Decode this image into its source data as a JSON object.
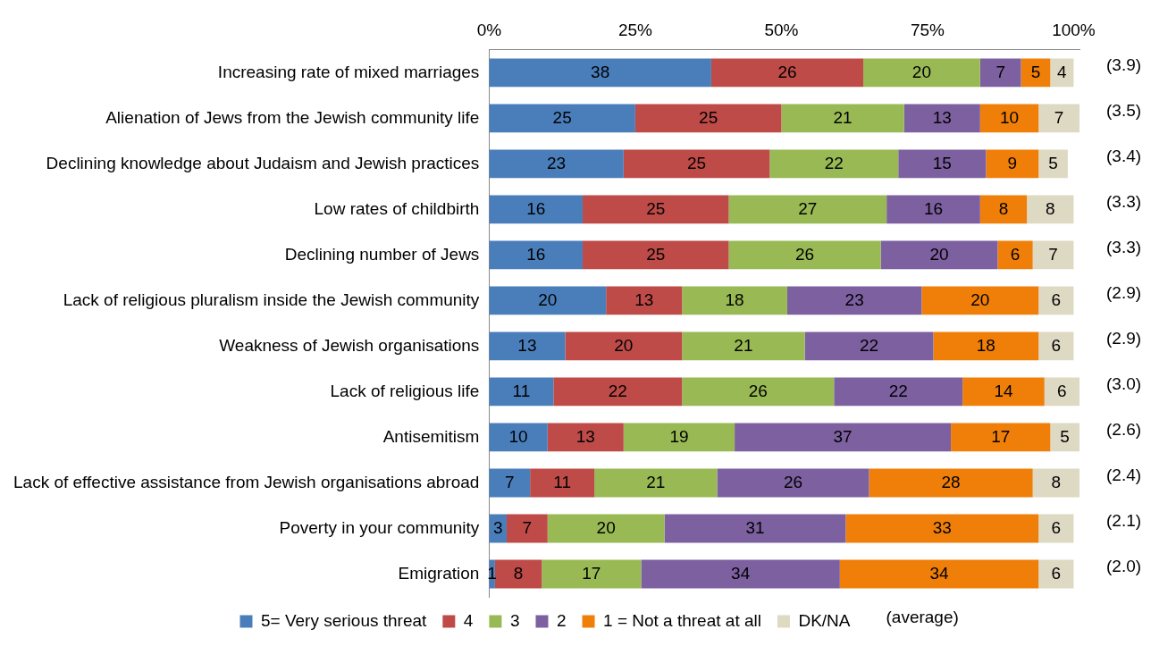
{
  "chart_data": {
    "type": "bar",
    "orientation": "horizontal",
    "stacked": true,
    "categories": [
      "Increasing rate of mixed marriages",
      "Alienation of Jews from the Jewish community life",
      "Declining knowledge about Judaism and Jewish practices",
      "Low rates of childbirth",
      "Declining number of Jews",
      "Lack of religious pluralism inside the Jewish community",
      "Weakness of Jewish organisations",
      "Lack of religious life",
      "Antisemitism",
      "Lack of effective assistance from Jewish organisations abroad",
      "Poverty in your community",
      "Emigration"
    ],
    "series": [
      {
        "name": "5= Very serious threat",
        "color": "#4a7ebb",
        "values": [
          38,
          25,
          23,
          16,
          16,
          20,
          13,
          11,
          10,
          7,
          3,
          1
        ]
      },
      {
        "name": "4",
        "color": "#be4b48",
        "values": [
          26,
          25,
          25,
          25,
          25,
          13,
          20,
          22,
          13,
          11,
          7,
          8
        ]
      },
      {
        "name": "3",
        "color": "#98b954",
        "values": [
          20,
          21,
          22,
          27,
          26,
          18,
          21,
          26,
          19,
          21,
          20,
          17
        ]
      },
      {
        "name": "2",
        "color": "#7d60a0",
        "values": [
          7,
          13,
          15,
          16,
          20,
          23,
          22,
          22,
          37,
          26,
          31,
          34
        ]
      },
      {
        "name": "1 = Not a threat at all",
        "color": "#f07f09",
        "values": [
          5,
          10,
          9,
          8,
          6,
          20,
          18,
          14,
          17,
          28,
          33,
          34
        ]
      },
      {
        "name": "DK/NA",
        "color": "#ddd9c3",
        "values": [
          4,
          7,
          5,
          8,
          7,
          6,
          6,
          6,
          5,
          8,
          6,
          6
        ]
      }
    ],
    "xlim": [
      0,
      101
    ],
    "xticks": [
      {
        "value": 0,
        "label": "0%"
      },
      {
        "value": 25,
        "label": "25%"
      },
      {
        "value": 50,
        "label": "50%"
      },
      {
        "value": 75,
        "label": "75%"
      },
      {
        "value": 100,
        "label": "100%"
      }
    ],
    "data_labels": true,
    "grid": false,
    "legend": "bottom",
    "legend_title": "(average)",
    "annotations": [
      "(3.9)",
      "(3.5)",
      "(3.4)",
      "(3.3)",
      "(3.3)",
      "(2.9)",
      "(2.9)",
      "(3.0)",
      "(2.6)",
      "(2.4)",
      "(2.1)",
      "(2.0)"
    ]
  }
}
